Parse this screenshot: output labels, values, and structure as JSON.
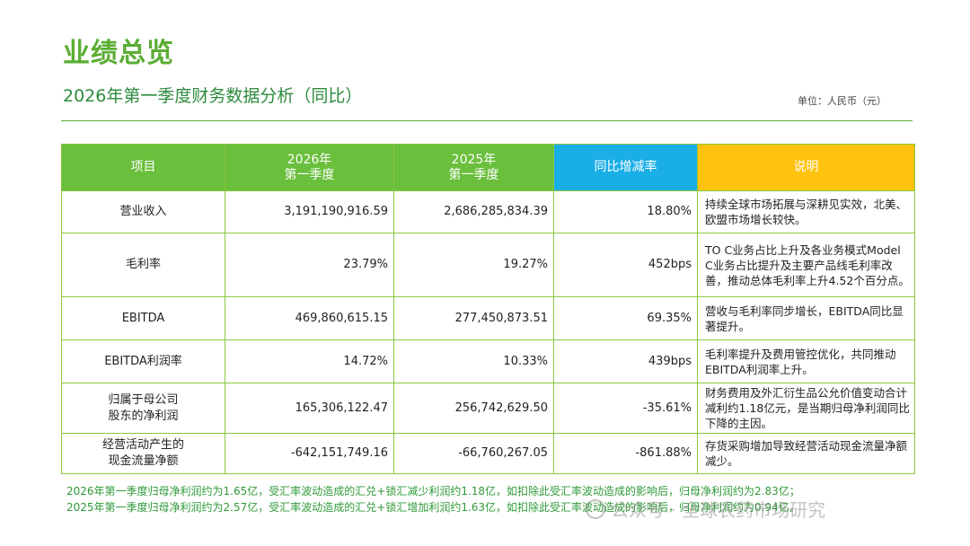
{
  "header": {
    "title": "业绩总览",
    "subtitle": "2026年第一季度财务数据分析（同比）",
    "unit": "单位：人民币（元）"
  },
  "table": {
    "columns": {
      "item": "项目",
      "y2026_line1": "2026年",
      "y2026_line2": "第一季度",
      "y2025_line1": "2025年",
      "y2025_line2": "第一季度",
      "yoy": "同比增减率",
      "note": "说明"
    },
    "rows": [
      {
        "item_line1": "营业收入",
        "item_line2": "",
        "v2026": "3,191,190,916.59",
        "v2025": "2,686,285,834.39",
        "yoy": "18.80%",
        "note": "持续全球市场拓展与深耕见实效，北美、欧盟市场增长较快。"
      },
      {
        "item_line1": "毛利率",
        "item_line2": "",
        "v2026": "23.79%",
        "v2025": "19.27%",
        "yoy": "452bps",
        "note": "TO C业务占比上升及各业务模式Model C业务占比提升及主要产品线毛利率改善，推动总体毛利率上升4.52个百分点。"
      },
      {
        "item_line1": "EBITDA",
        "item_line2": "",
        "v2026": "469,860,615.15",
        "v2025": "277,450,873.51",
        "yoy": "69.35%",
        "note": "营收与毛利率同步增长，EBITDA同比显著提升。"
      },
      {
        "item_line1": "EBITDA利润率",
        "item_line2": "",
        "v2026": "14.72%",
        "v2025": "10.33%",
        "yoy": "439bps",
        "note": "毛利率提升及费用管控优化，共同推动EBITDA利润率上升。"
      },
      {
        "item_line1": "归属于母公司",
        "item_line2": "股东的净利润",
        "v2026": "165,306,122.47",
        "v2025": "256,742,629.50",
        "yoy": "-35.61%",
        "note": "财务费用及外汇衍生品公允价值变动合计减利约1.18亿元，是当期归母净利润同比下降的主因。"
      },
      {
        "item_line1": "经营活动产生的",
        "item_line2": "现金流量净额",
        "v2026": "-642,151,749.16",
        "v2025": "-66,760,267.05",
        "yoy": "-861.88%",
        "note": "存货采购增加导致经营活动现金流量净额减少。"
      }
    ]
  },
  "footnotes": {
    "line1": "2026年第一季度归母净利润约为1.65亿，受汇率波动造成的汇兑+锁汇减少利润约1.18亿，如扣除此受汇率波动造成的影响后，归母净利润约为2.83亿；",
    "line2": "2025年第一季度归母净利润约为2.57亿，受汇率波动造成的汇兑+锁汇增加利润约1.63亿，如扣除此受汇率波动造成的影响后，归母净利润约为0.94亿。"
  },
  "watermark": {
    "text": "公众号 · 全球农药市场研究",
    "icon": "wechat-icon"
  },
  "colors": {
    "green": "#6abf3c",
    "blue": "#1aaee6",
    "yellow": "#ffc20e",
    "text_green": "#2f9a38"
  }
}
